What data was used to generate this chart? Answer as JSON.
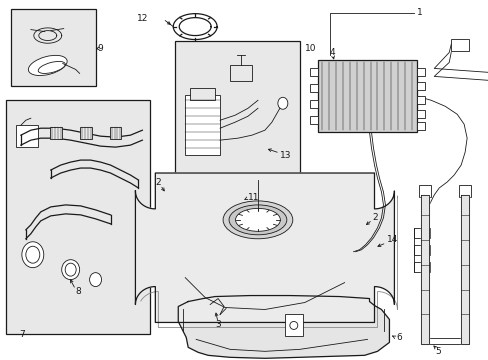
{
  "bg_color": "#ffffff",
  "line_color": "#1a1a1a",
  "fill_light": "#e8e8e8",
  "fill_white": "#ffffff",
  "fig_width": 4.89,
  "fig_height": 3.6,
  "dpi": 100,
  "lw_thin": 0.6,
  "lw_med": 0.9,
  "lw_thick": 1.2,
  "font_size": 6.5
}
